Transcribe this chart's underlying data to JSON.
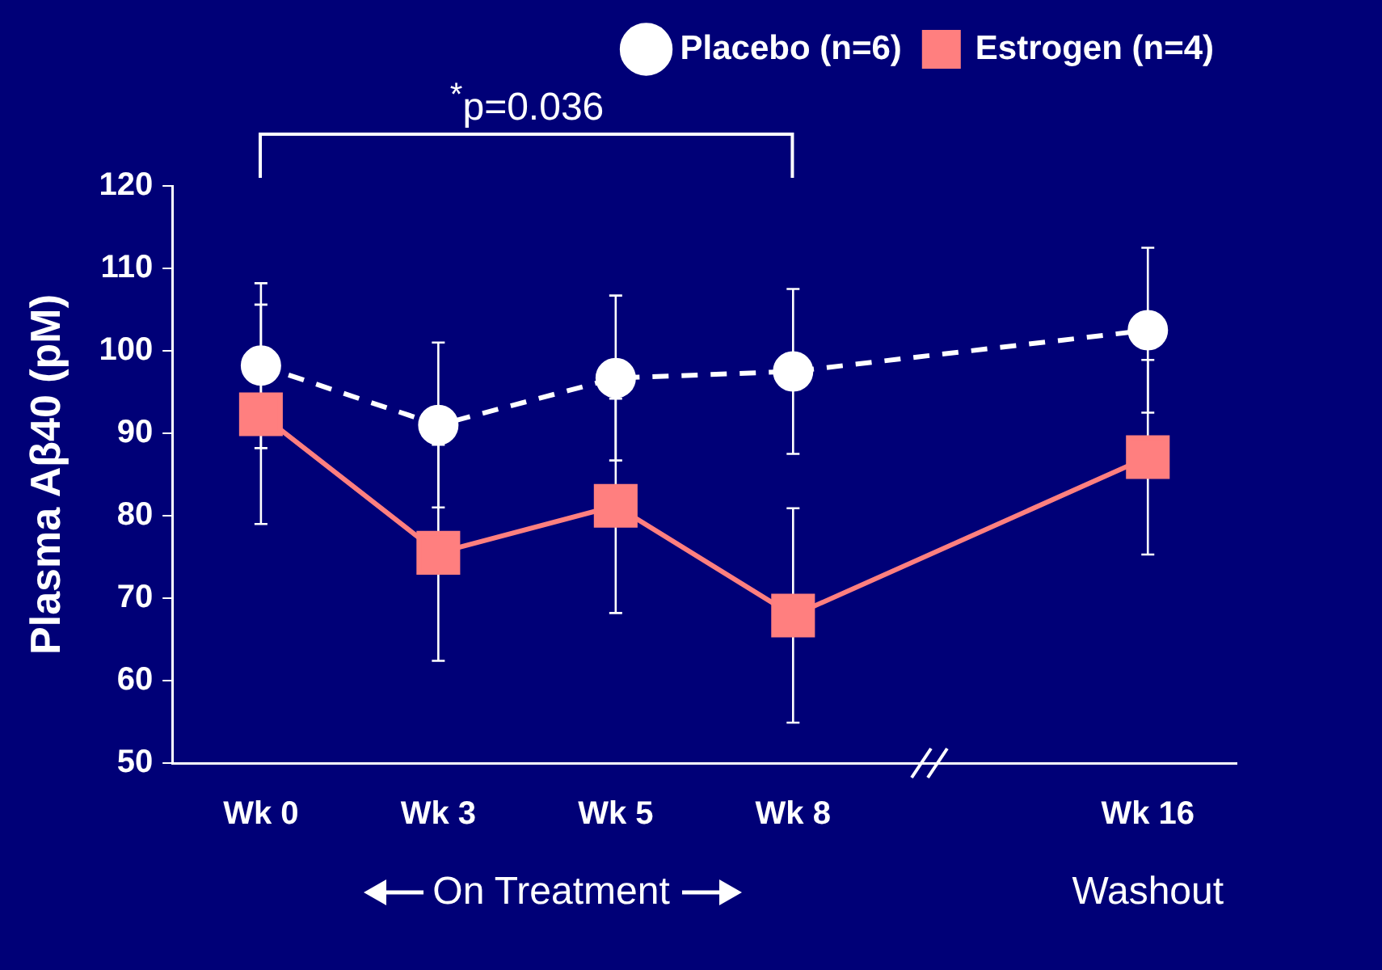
{
  "chart_data": {
    "type": "line",
    "ylabel": "Plasma Aβ40 (pM)",
    "categories": [
      "Wk 0",
      "Wk 3",
      "Wk 5",
      "Wk 8",
      null,
      "Wk 16"
    ],
    "series": [
      {
        "name": "Placebo (n=6)",
        "color": "#ffffff",
        "marker": "circle",
        "line_style": "dashed",
        "values": [
          98.2,
          91,
          96.7,
          97.5,
          null,
          102.5
        ],
        "errors": [
          10,
          10,
          10,
          10,
          null,
          10
        ]
      },
      {
        "name": "Estrogen (n=4)",
        "color": "#ff7f7f",
        "marker": "square",
        "line_style": "solid",
        "values": [
          92.3,
          75.5,
          81.2,
          67.9,
          null,
          87.1
        ],
        "errors": [
          13.3,
          13.1,
          13,
          13,
          null,
          11.8
        ]
      }
    ],
    "ylim": [
      50,
      120
    ],
    "yticks": [
      50,
      60,
      70,
      80,
      90,
      100,
      110,
      120
    ],
    "grid": false,
    "legend": "top right",
    "annotations": [
      "$^{*}$p=0.036",
      "On Treatment",
      "Washout"
    ]
  }
}
